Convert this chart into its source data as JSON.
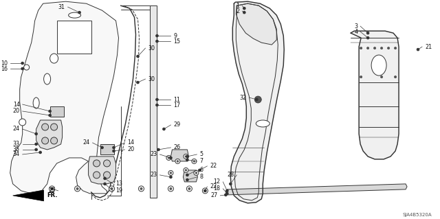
{
  "background_color": "#ffffff",
  "diagram_code": "SJA4B5320A",
  "fig_width": 6.4,
  "fig_height": 3.19,
  "dpi": 100,
  "line_color": "#333333",
  "lw": 0.7
}
